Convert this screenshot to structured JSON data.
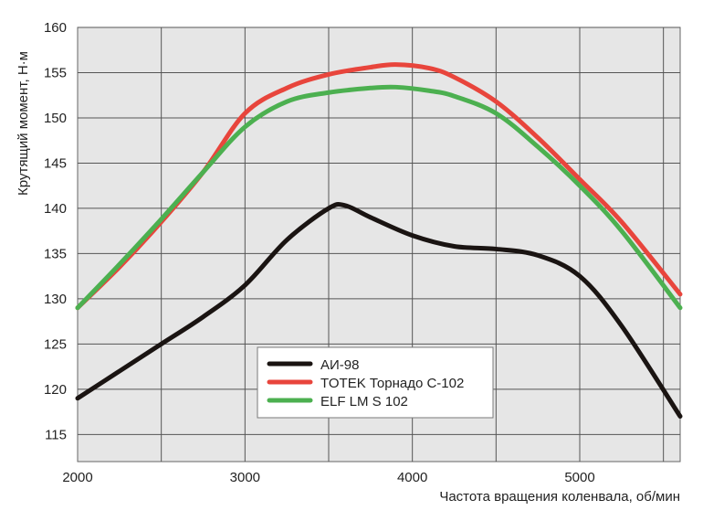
{
  "chart_data": {
    "type": "line",
    "title": "",
    "xlabel": "Частота вращения коленвала, об/мин",
    "ylabel": "Крутящий момент, Н·м",
    "xlim": [
      2000,
      5600
    ],
    "ylim": [
      112,
      160
    ],
    "x_ticks": [
      2000,
      3000,
      4000,
      5000
    ],
    "y_ticks": [
      115,
      120,
      125,
      130,
      135,
      140,
      145,
      150,
      155,
      160
    ],
    "x_tick_labels": [
      "2000",
      "3000",
      "4000",
      "5000"
    ],
    "y_tick_labels": [
      "115",
      "120",
      "125",
      "130",
      "135",
      "140",
      "145",
      "150",
      "155",
      "160"
    ],
    "grid": true,
    "legend_position": "bottom-center",
    "series": [
      {
        "name": "АИ-98",
        "color": "#1a1412",
        "x": [
          2000,
          2250,
          2500,
          2750,
          3000,
          3250,
          3500,
          3600,
          3750,
          4000,
          4250,
          4500,
          4750,
          5000,
          5250,
          5600
        ],
        "y": [
          119,
          122,
          125,
          128,
          131.5,
          136.5,
          140,
          140.3,
          139,
          137,
          135.8,
          135.5,
          134.8,
          132.5,
          127,
          117
        ]
      },
      {
        "name": "TOTEK Торнадо С-102",
        "color": "#e8453c",
        "x": [
          2000,
          2250,
          2500,
          2750,
          3000,
          3250,
          3500,
          3750,
          3900,
          4100,
          4250,
          4500,
          4750,
          5000,
          5250,
          5600
        ],
        "y": [
          129,
          133.5,
          138.5,
          144,
          150.5,
          153.3,
          154.8,
          155.6,
          155.9,
          155.5,
          154.5,
          151.8,
          147.8,
          143.2,
          138.5,
          130.5
        ]
      },
      {
        "name": "ELF LM S 102",
        "color": "#4cb050",
        "x": [
          2000,
          2250,
          2500,
          2750,
          3000,
          3250,
          3500,
          3750,
          3900,
          4100,
          4250,
          4500,
          4750,
          5000,
          5250,
          5600
        ],
        "y": [
          129,
          133.8,
          138.8,
          144,
          149,
          151.8,
          152.8,
          153.3,
          153.4,
          153,
          152.4,
          150.5,
          146.8,
          142.5,
          137.5,
          129
        ]
      }
    ]
  }
}
